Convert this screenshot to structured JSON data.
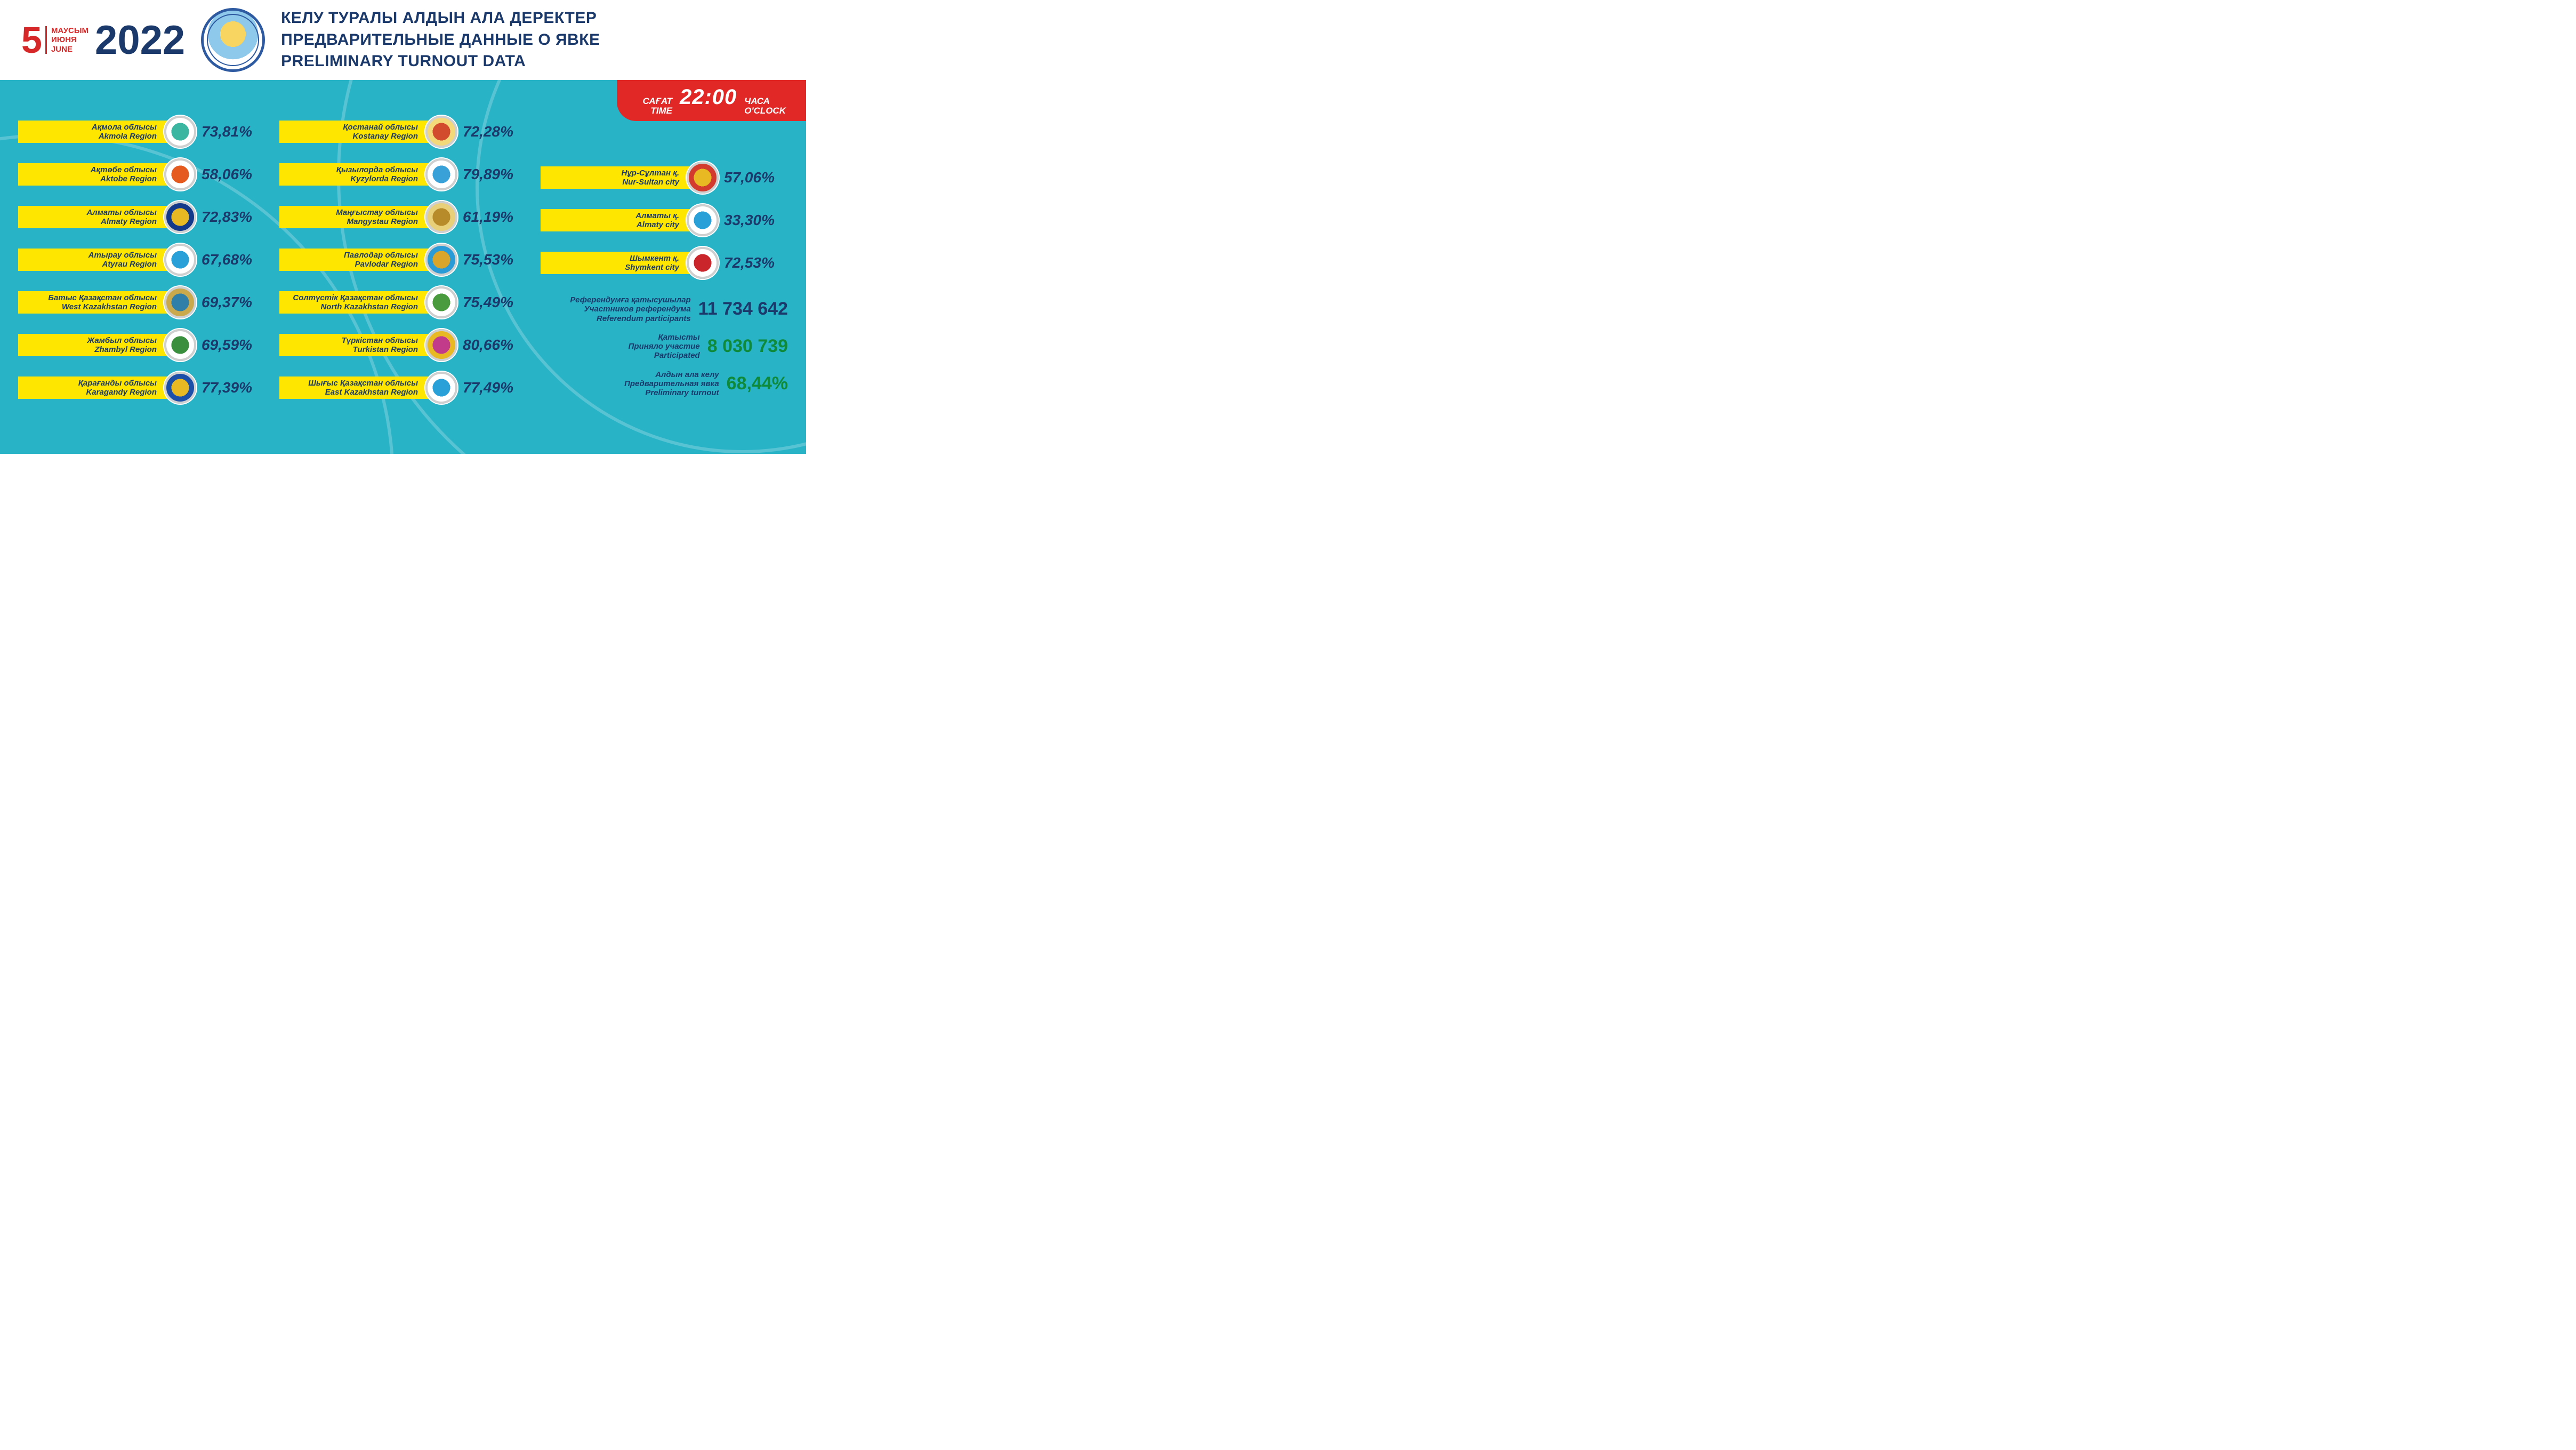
{
  "header": {
    "date_day": "5",
    "months": {
      "kk": "МАУСЫМ",
      "ru": "ИЮНЯ",
      "en": "JUNE"
    },
    "year": "2022",
    "title_kk": "КЕЛУ ТУРАЛЫ АЛДЫН АЛА ДЕРЕКТЕР",
    "title_ru": "ПРЕДВАРИТЕЛЬНЫЕ ДАННЫЕ О ЯВКЕ",
    "title_en": "PRELIMINARY TURNOUT DATA"
  },
  "time_badge": {
    "left_kk": "САҒАТ",
    "left_en": "TIME",
    "value": "22:00",
    "right_ru": "ЧАСА",
    "right_en": "O'CLOCK"
  },
  "colors": {
    "header_text": "#1b3a6b",
    "accent_red": "#d62828",
    "badge_red": "#e22727",
    "body_bg": "#28b3c7",
    "row_bg": "#ffe600",
    "value_green": "#0e8a3a"
  },
  "columns": [
    [
      {
        "kk": "Ақмола облысы",
        "en": "Akmola Region",
        "pct": "73,81%",
        "emblem_bg": "#ffffff",
        "emblem_inner": "#3bb6a0"
      },
      {
        "kk": "Ақтөбе облысы",
        "en": "Aktobe Region",
        "pct": "58,06%",
        "emblem_bg": "#ffffff",
        "emblem_inner": "#e55a1f"
      },
      {
        "kk": "Алматы облысы",
        "en": "Almaty Region",
        "pct": "72,83%",
        "emblem_bg": "#133a8a",
        "emblem_inner": "#e8b923"
      },
      {
        "kk": "Атырау облысы",
        "en": "Atyrau Region",
        "pct": "67,68%",
        "emblem_bg": "#ffffff",
        "emblem_inner": "#2aa0d8"
      },
      {
        "kk": "Батыс Қазақстан облысы",
        "en": "West Kazakhstan Region",
        "pct": "69,37%",
        "emblem_bg": "#c9a94b",
        "emblem_inner": "#2f7fa8"
      },
      {
        "kk": "Жамбыл облысы",
        "en": "Zhambyl Region",
        "pct": "69,59%",
        "emblem_bg": "#ffffff",
        "emblem_inner": "#3a8f3e"
      },
      {
        "kk": "Қарағанды облысы",
        "en": "Karagandy Region",
        "pct": "77,39%",
        "emblem_bg": "#1b4fa8",
        "emblem_inner": "#e8b923"
      }
    ],
    [
      {
        "kk": "Қостанай облысы",
        "en": "Kostanay Region",
        "pct": "72,28%",
        "emblem_bg": "#f4d97a",
        "emblem_inner": "#d24b2c"
      },
      {
        "kk": "Қызылорда облысы",
        "en": "Kyzylorda Region",
        "pct": "79,89%",
        "emblem_bg": "#ffffff",
        "emblem_inner": "#3aa0d8"
      },
      {
        "kk": "Маңғыстау облысы",
        "en": "Mangystau Region",
        "pct": "61,19%",
        "emblem_bg": "#e8cf7a",
        "emblem_inner": "#b78a2a"
      },
      {
        "kk": "Павлодар облысы",
        "en": "Pavlodar Region",
        "pct": "75,53%",
        "emblem_bg": "#2a9bd6",
        "emblem_inner": "#d9a62b"
      },
      {
        "kk": "Солтүстік Қазақстан облысы",
        "en": "North Kazakhstan Region",
        "pct": "75,49%",
        "emblem_bg": "#ffffff",
        "emblem_inner": "#4a9b3e"
      },
      {
        "kk": "Түркістан облысы",
        "en": "Turkistan Region",
        "pct": "80,66%",
        "emblem_bg": "#e8b923",
        "emblem_inner": "#c23b8a"
      },
      {
        "kk": "Шығыс Қазақстан облысы",
        "en": "East Kazakhstan Region",
        "pct": "77,49%",
        "emblem_bg": "#ffffff",
        "emblem_inner": "#2aa0d8"
      }
    ],
    [
      {
        "kk": "Нұр-Сұлтан қ.",
        "en": "Nur-Sultan city",
        "pct": "57,06%",
        "emblem_bg": "#d23b2e",
        "emblem_inner": "#e8b923"
      },
      {
        "kk": "Алматы қ.",
        "en": "Almaty city",
        "pct": "33,30%",
        "emblem_bg": "#ffffff",
        "emblem_inner": "#2aa0d8"
      },
      {
        "kk": "Шымкент қ.",
        "en": "Shymkent city",
        "pct": "72,53%",
        "emblem_bg": "#ffffff",
        "emblem_inner": "#c9252b"
      }
    ]
  ],
  "summary": [
    {
      "kk": "Референдумға қатысушылар",
      "ru": "Участников референдума",
      "en": "Referendum participants",
      "value": "11 734 642",
      "value_class": "blue"
    },
    {
      "kk": "Қатысты",
      "ru": "Приняло участие",
      "en": "Participated",
      "value": "8 030 739",
      "value_class": "green"
    },
    {
      "kk": "Алдын ала келу",
      "ru": "Предварительная явка",
      "en": "Preliminary turnout",
      "value": "68,44%",
      "value_class": "green"
    }
  ]
}
